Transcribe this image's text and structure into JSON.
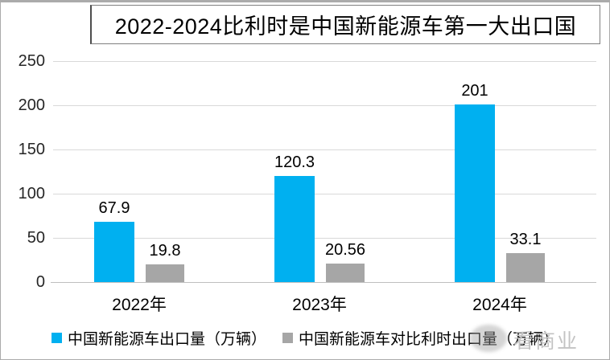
{
  "chart_data": {
    "type": "bar",
    "title": "2022-2024比利时是中国新能源车第一大出口国",
    "categories": [
      "2022年",
      "2023年",
      "2024年"
    ],
    "series": [
      {
        "name": "中国新能源车出口量（万辆）",
        "color": "#00B0F0",
        "values": [
          67.9,
          120.3,
          201
        ]
      },
      {
        "name": "中国新能源车对比利时出口量（万辆）",
        "color": "#A6A6A6",
        "values": [
          19.8,
          20.56,
          33.1
        ]
      }
    ],
    "y_ticks": [
      0,
      50,
      100,
      150,
      200,
      250
    ],
    "ylim": [
      0,
      250
    ],
    "xlabel": "",
    "ylabel": "",
    "grid": true,
    "legend_position": "bottom",
    "colors": {
      "gridline": "#d9d9d9",
      "axis_line": "#bfbfbf",
      "tick_text": "#262626",
      "label_text": "#000000",
      "watermark": "#c3c3c3"
    }
  },
  "watermark": {
    "text": "看商业"
  }
}
